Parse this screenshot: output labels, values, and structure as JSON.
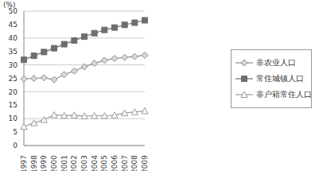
{
  "chart_data": {
    "type": "line",
    "y_label": "(%)",
    "categories": [
      "1997",
      "1998",
      "1999",
      "2000",
      "2001",
      "2002",
      "2003",
      "2004",
      "2005",
      "2006",
      "2007",
      "2008",
      "2009"
    ],
    "series": [
      {
        "name": "非农业人口",
        "color": "#8c8c8c",
        "marker": "diamond",
        "values": [
          24.8,
          25.0,
          25.2,
          24.5,
          26.4,
          27.7,
          29.3,
          30.6,
          31.7,
          32.4,
          32.8,
          33.1,
          33.6
        ]
      },
      {
        "name": "常住城镇人口",
        "color": "#6e6e6e",
        "marker": "square",
        "values": [
          31.9,
          33.4,
          34.8,
          36.2,
          37.7,
          39.1,
          40.5,
          41.8,
          43.0,
          43.9,
          44.9,
          45.7,
          46.6
        ]
      },
      {
        "name": "非户籍常住人口",
        "color": "#9a9a9a",
        "marker": "triangle",
        "values": [
          7.1,
          8.4,
          9.6,
          11.4,
          11.2,
          11.3,
          11.0,
          11.1,
          11.1,
          11.3,
          12.1,
          12.5,
          12.9
        ]
      }
    ],
    "ylim": [
      0,
      50
    ],
    "yticks": [
      0,
      5,
      10,
      15,
      20,
      25,
      30,
      35,
      40,
      45,
      50
    ],
    "grid": true,
    "legend": "right"
  }
}
